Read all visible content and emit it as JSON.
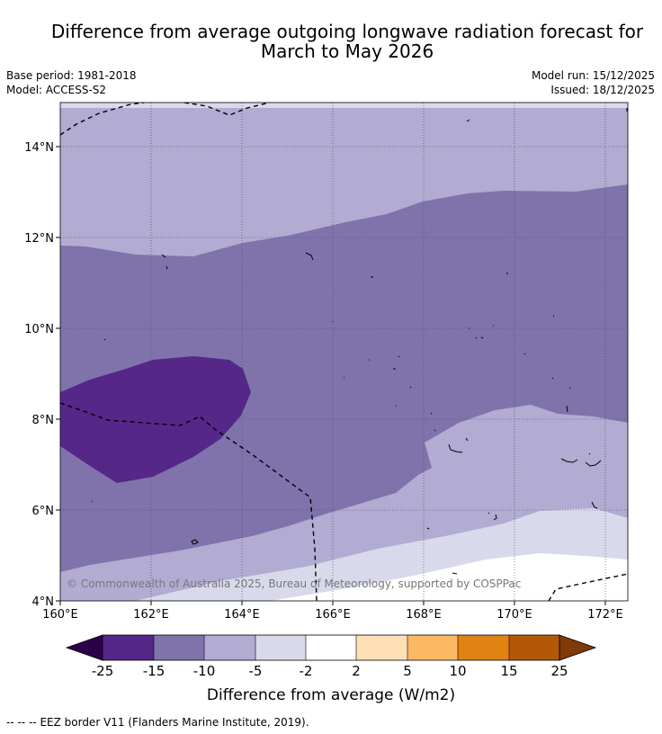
{
  "title": {
    "line1": "Difference from average outgoing longwave radiation forecast for",
    "line2": "March to May 2026"
  },
  "meta": {
    "base_period": "Base period: 1981-2018",
    "model": "Model: ACCESS-S2",
    "model_run": "Model run: 15/12/2025",
    "issued": "Issued: 18/12/2025"
  },
  "map": {
    "lon_ticks": [
      "160°E",
      "162°E",
      "164°E",
      "166°E",
      "168°E",
      "170°E",
      "172°E"
    ],
    "lat_ticks": [
      "14°N",
      "12°N",
      "10°N",
      "8°N",
      "6°N",
      "4°N"
    ],
    "copyright": "© Commonwealth of Australia 2025, Bureau of Meteorology, supported by COSPPac",
    "colors": {
      "lt_m15": "#542788",
      "m15_m10": "#8073ac",
      "m10_m5": "#b2abd2",
      "m5_m2": "#d8daeb",
      "m2_2": "#ffffff"
    }
  },
  "colorbar": {
    "ticks": [
      "-25",
      "-15",
      "-10",
      "-5",
      "-2",
      "2",
      "5",
      "10",
      "15",
      "25"
    ],
    "colors": [
      "#2d004b",
      "#542788",
      "#8073ac",
      "#b2abd2",
      "#d8daeb",
      "#ffffff",
      "#fee0b6",
      "#fdb863",
      "#e08214",
      "#b35806",
      "#7f3b08"
    ],
    "title": "Difference from average (W/m2)"
  },
  "footer": {
    "legend_symbol": "--  --  --",
    "legend_text": "EEZ border V11 (Flanders Marine Institute, 2019)."
  }
}
